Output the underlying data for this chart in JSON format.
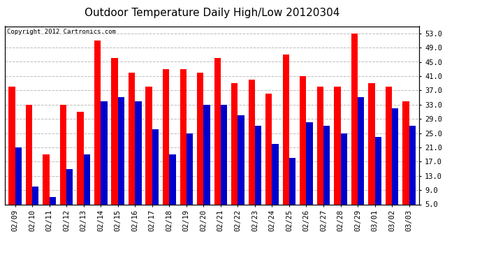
{
  "title": "Outdoor Temperature Daily High/Low 20120304",
  "copyright": "Copyright 2012 Cartronics.com",
  "dates": [
    "02/09",
    "02/10",
    "02/11",
    "02/12",
    "02/13",
    "02/14",
    "02/15",
    "02/16",
    "02/17",
    "02/18",
    "02/19",
    "02/20",
    "02/21",
    "02/22",
    "02/23",
    "02/24",
    "02/25",
    "02/26",
    "02/27",
    "02/28",
    "02/29",
    "03/01",
    "03/02",
    "03/03"
  ],
  "highs": [
    38,
    33,
    19,
    33,
    31,
    51,
    46,
    42,
    38,
    43,
    43,
    42,
    46,
    39,
    40,
    36,
    47,
    41,
    38,
    38,
    53,
    39,
    38,
    34
  ],
  "lows": [
    21,
    10,
    7,
    15,
    19,
    34,
    35,
    34,
    26,
    19,
    25,
    33,
    33,
    30,
    27,
    22,
    18,
    28,
    27,
    25,
    35,
    24,
    32,
    27
  ],
  "bar_width": 0.38,
  "high_color": "#ff0000",
  "low_color": "#0000cc",
  "bg_color": "#ffffff",
  "plot_bg_color": "#ffffff",
  "grid_color": "#bbbbbb",
  "ylim_min": 5.0,
  "ylim_max": 55.0,
  "yticks": [
    5.0,
    9.0,
    13.0,
    17.0,
    21.0,
    25.0,
    29.0,
    33.0,
    37.0,
    41.0,
    45.0,
    49.0,
    53.0
  ],
  "title_fontsize": 11,
  "tick_fontsize": 7.5,
  "copyright_fontsize": 6.5,
  "fig_width": 6.9,
  "fig_height": 3.75
}
